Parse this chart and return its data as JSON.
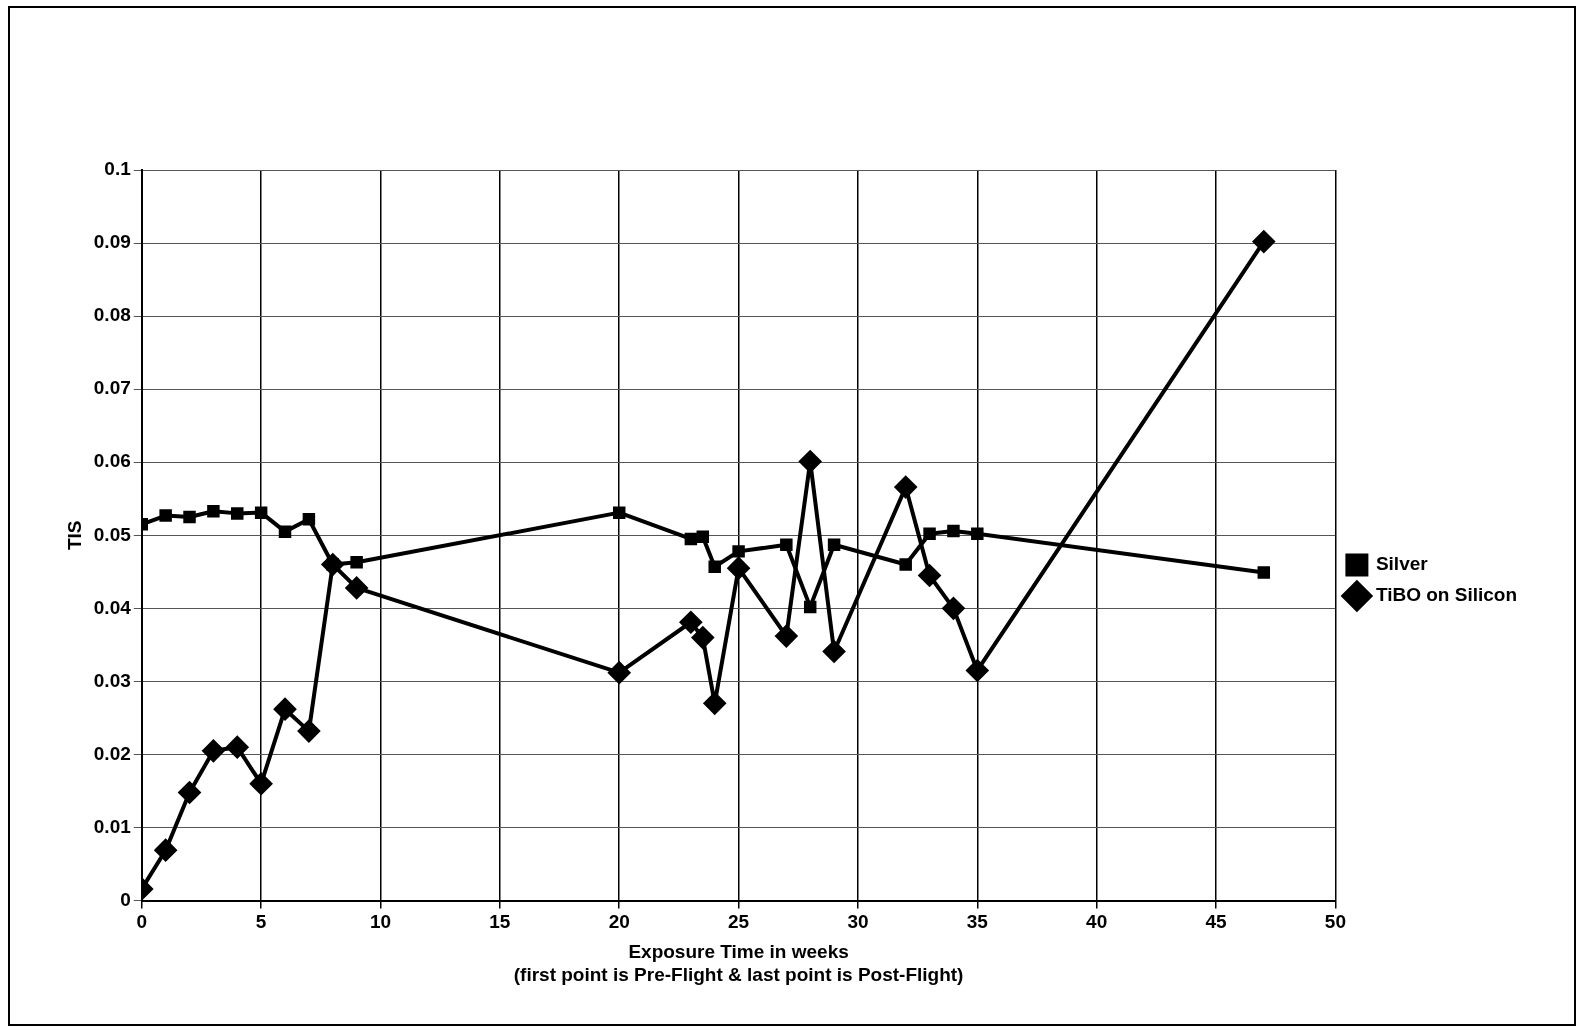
{
  "chart_data": {
    "type": "line",
    "xlabel": "Exposure Time in weeks\n(first point is Pre-Flight & last point is Post-Flight)",
    "ylabel": "TIS",
    "xlim": [
      0,
      50
    ],
    "xticks": [
      0,
      5,
      10,
      15,
      20,
      25,
      30,
      35,
      40,
      45,
      50
    ],
    "ylim": [
      0,
      0.1
    ],
    "yticks": [
      0,
      0.01,
      0.02,
      0.03,
      0.04,
      0.05,
      0.06,
      0.07,
      0.08,
      0.09,
      0.1
    ],
    "grid": true,
    "legend": "right",
    "x": [
      0,
      1,
      2,
      3,
      4,
      5,
      6,
      7,
      8,
      9,
      20,
      23,
      23.5,
      24,
      25,
      27,
      28,
      29,
      32,
      33,
      34,
      35,
      47
    ],
    "series": [
      {
        "name": "Silver",
        "color": "#000000",
        "marker": "square",
        "values": [
          0.0515,
          0.0527,
          0.0525,
          0.0533,
          0.053,
          0.0531,
          0.0505,
          0.0522,
          0.046,
          0.0463,
          0.0531,
          0.0495,
          0.0498,
          0.0457,
          0.0478,
          0.0487,
          0.0402,
          0.0487,
          0.046,
          0.0502,
          0.0506,
          0.0502,
          0.0449
        ]
      },
      {
        "name": "TiBO on Silicon",
        "color": "#000000",
        "marker": "diamond",
        "values": [
          0.0016,
          0.0069,
          0.0148,
          0.0205,
          0.021,
          0.016,
          0.0262,
          0.0232,
          0.046,
          0.0428,
          0.0312,
          0.0381,
          0.036,
          0.027,
          0.0455,
          0.0362,
          0.0601,
          0.0341,
          0.0566,
          0.0445,
          0.04,
          0.0315,
          0.0902
        ]
      }
    ]
  }
}
